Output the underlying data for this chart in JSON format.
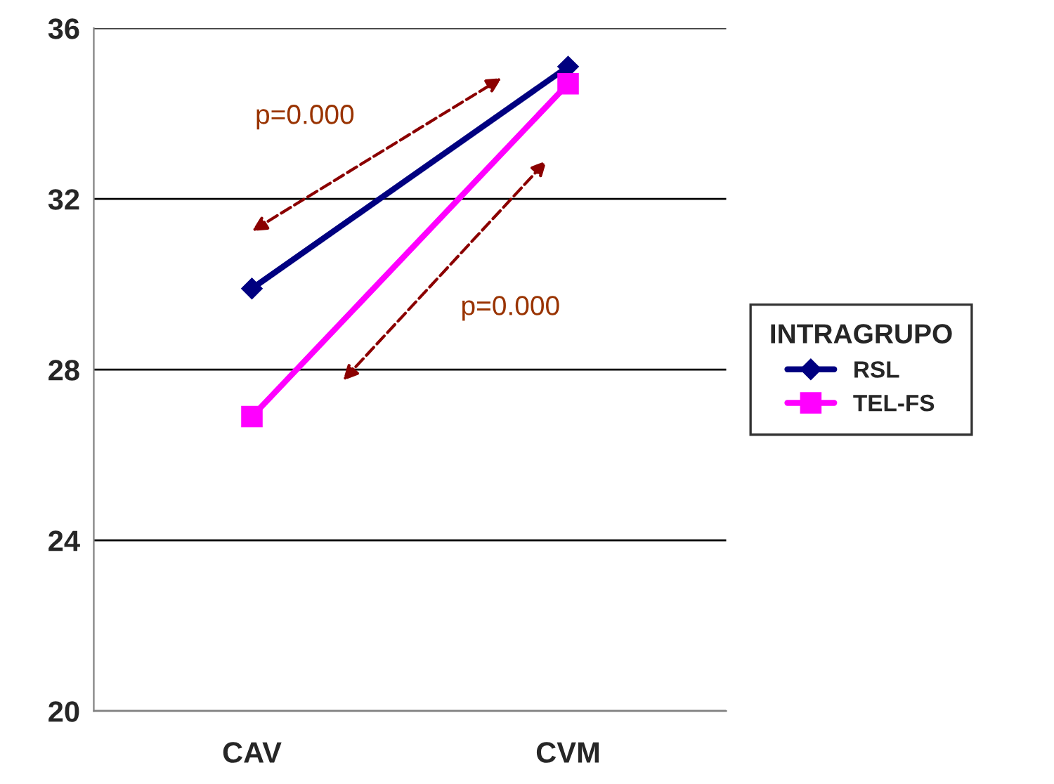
{
  "chart_data": {
    "type": "line",
    "categories": [
      "CAV",
      "CVM"
    ],
    "series": [
      {
        "name": "RSL",
        "color": "#000080",
        "values": [
          29.9,
          35.1
        ],
        "marker": "diamond"
      },
      {
        "name": "TEL-FS",
        "color": "#ff00ff",
        "values": [
          26.9,
          34.7
        ],
        "marker": "square"
      }
    ],
    "ylim": [
      20,
      36
    ],
    "yticks": [
      20,
      24,
      28,
      32,
      36
    ],
    "grid": "y",
    "legend": "right",
    "legend_title": "INTRAGRUPO",
    "annotations": [
      "p=0.000",
      "p=0.000"
    ],
    "line_style": "solid"
  }
}
